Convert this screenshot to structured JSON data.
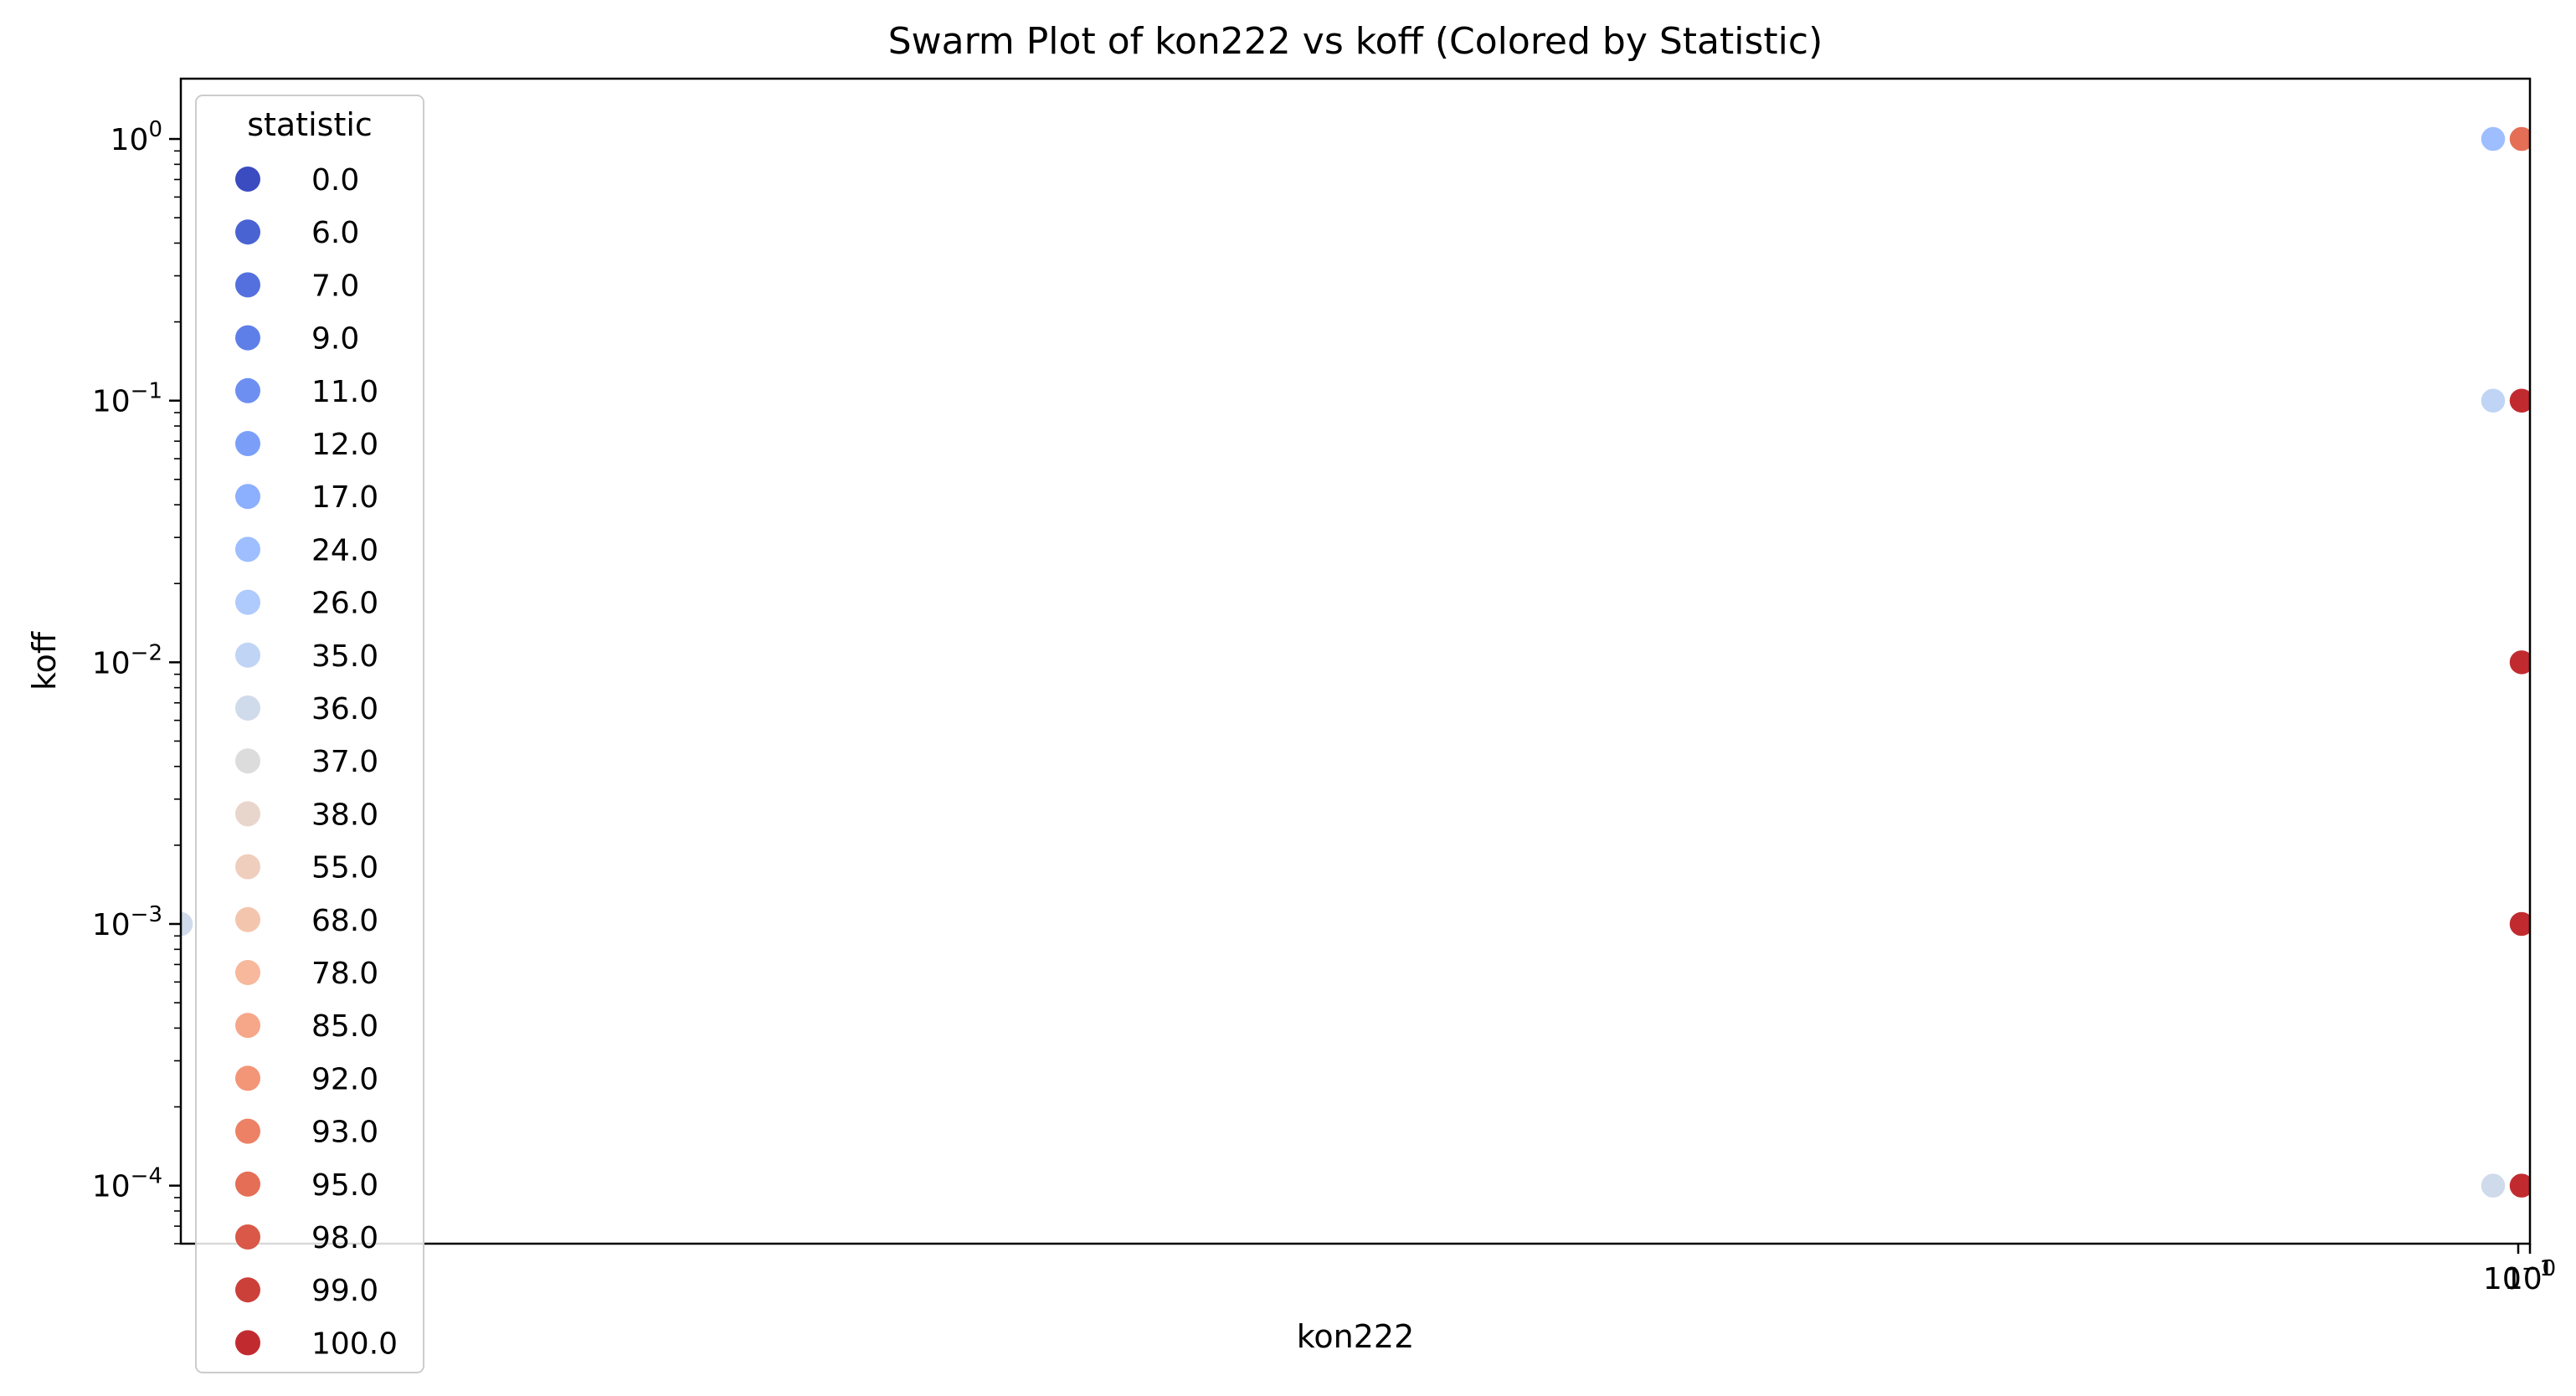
{
  "chart_data": {
    "type": "scatter",
    "title": "Swarm Plot of kon222 vs koff (Colored by Statistic)",
    "xlabel": "kon222",
    "ylabel": "koff",
    "y_scale": "log",
    "ylim": [
      6e-05,
      1.7
    ],
    "y_ticks": [
      {
        "value": 1,
        "base": "10",
        "exp": "0"
      },
      {
        "value": 0.1,
        "base": "10",
        "exp": "−1"
      },
      {
        "value": 0.01,
        "base": "10",
        "exp": "−2"
      },
      {
        "value": 0.001,
        "base": "10",
        "exp": "−3"
      },
      {
        "value": 0.0001,
        "base": "10",
        "exp": "−4"
      }
    ],
    "x_tick_label_overlap": {
      "a": "10",
      "a_exp": "−1",
      "b": "10",
      "b_exp": "0"
    },
    "grid": false,
    "legend": {
      "title": "statistic",
      "placement": "upper-left",
      "entries": [
        {
          "label": "0.0",
          "color": "#3b4cc0"
        },
        {
          "label": "6.0",
          "color": "#4a63d3"
        },
        {
          "label": "7.0",
          "color": "#5470de"
        },
        {
          "label": "9.0",
          "color": "#5f7fe8"
        },
        {
          "label": "11.0",
          "color": "#6d8ff1"
        },
        {
          "label": "12.0",
          "color": "#7b9ff9"
        },
        {
          "label": "17.0",
          "color": "#8caffe"
        },
        {
          "label": "24.0",
          "color": "#9ebeff"
        },
        {
          "label": "26.0",
          "color": "#afcafc"
        },
        {
          "label": "35.0",
          "color": "#c0d4f5"
        },
        {
          "label": "36.0",
          "color": "#cfdaea"
        },
        {
          "label": "37.0",
          "color": "#dddcdc"
        },
        {
          "label": "38.0",
          "color": "#e8d6cc"
        },
        {
          "label": "55.0",
          "color": "#efcebd"
        },
        {
          "label": "68.0",
          "color": "#f4c5ad"
        },
        {
          "label": "78.0",
          "color": "#f7b89c"
        },
        {
          "label": "85.0",
          "color": "#f6a789"
        },
        {
          "label": "92.0",
          "color": "#f39577"
        },
        {
          "label": "93.0",
          "color": "#ec8165"
        },
        {
          "label": "95.0",
          "color": "#e46e56"
        },
        {
          "label": "98.0",
          "color": "#d95847"
        },
        {
          "label": "99.0",
          "color": "#cc403a"
        },
        {
          "label": "100.0",
          "color": "#c12b30"
        }
      ]
    },
    "points": [
      {
        "x": 0,
        "y": 0.001,
        "color": "#cfdaea"
      },
      {
        "x": 0.1,
        "y": 1,
        "color": "#9ebeff"
      },
      {
        "x": 0.1,
        "y": 0.1,
        "color": "#c0d4f5"
      },
      {
        "x": 0.1,
        "y": 0.0001,
        "color": "#cfdaea"
      },
      {
        "x": 1,
        "y": 1,
        "color": "#e46e56"
      },
      {
        "x": 1,
        "y": 0.1,
        "color": "#c12b30"
      },
      {
        "x": 1,
        "y": 0.01,
        "color": "#c12b30"
      },
      {
        "x": 1,
        "y": 0.001,
        "color": "#c12b30"
      },
      {
        "x": 1,
        "y": 0.0001,
        "color": "#c12b30"
      }
    ]
  }
}
